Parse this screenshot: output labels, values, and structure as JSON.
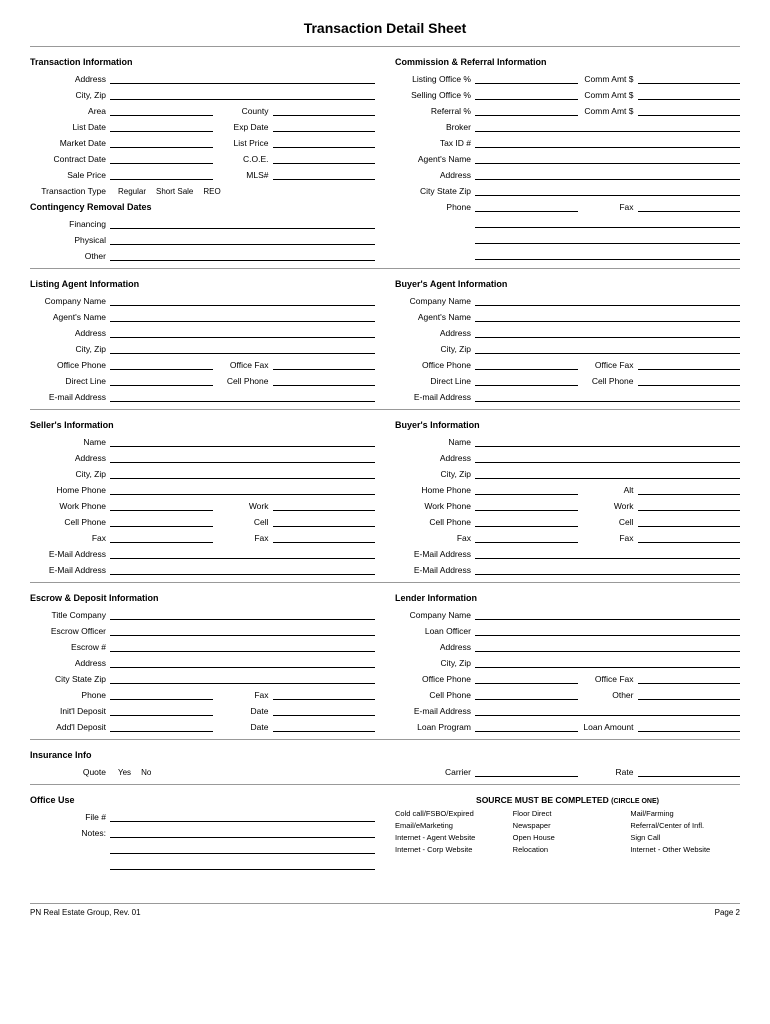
{
  "title": "Transaction Detail Sheet",
  "sections": {
    "transaction": {
      "head": "Transaction Information",
      "address": "Address",
      "cityzip": "City, Zip",
      "area": "Area",
      "county": "County",
      "listdate": "List Date",
      "expdate": "Exp Date",
      "marketdate": "Market Date",
      "listprice": "List Price",
      "contractdate": "Contract Date",
      "coe": "C.O.E.",
      "saleprice": "Sale Price",
      "mls": "MLS#",
      "transtype": "Transaction Type",
      "regular": "Regular",
      "shortsale": "Short Sale",
      "reo": "REO"
    },
    "contingency": {
      "head": "Contingency Removal Dates",
      "financing": "Financing",
      "physical": "Physical",
      "other": "Other"
    },
    "commission": {
      "head": "Commission & Referral Information",
      "listingpct": "Listing Office %",
      "commamt": "Comm Amt $",
      "sellingpct": "Selling Office %",
      "referralpct": "Referral %",
      "broker": "Broker",
      "taxid": "Tax ID #",
      "agentname": "Agent's Name",
      "address": "Address",
      "citystatezip": "City State Zip",
      "phone": "Phone",
      "fax": "Fax"
    },
    "listing_agent": {
      "head": "Listing Agent Information",
      "company": "Company Name",
      "agent": "Agent's Name",
      "address": "Address",
      "cityzip": "City, Zip",
      "officephone": "Office Phone",
      "officefax": "Office Fax",
      "directline": "Direct Line",
      "cellphone": "Cell Phone",
      "email": "E-mail Address"
    },
    "buyer_agent": {
      "head": "Buyer's Agent Information"
    },
    "seller": {
      "head": "Seller's Information",
      "name": "Name",
      "address": "Address",
      "cityzip": "City, Zip",
      "homephone": "Home Phone",
      "workphone": "Work Phone",
      "work": "Work",
      "cellphone": "Cell Phone",
      "cell": "Cell",
      "fax": "Fax",
      "alt": "Alt",
      "emailaddress": "E-Mail Address"
    },
    "buyer": {
      "head": "Buyer's Information"
    },
    "escrow": {
      "head": "Escrow & Deposit Information",
      "titlecompany": "Title Company",
      "escrowofficer": "Escrow Officer",
      "escrownum": "Escrow #",
      "address": "Address",
      "citystatezip": "City State Zip",
      "phone": "Phone",
      "fax": "Fax",
      "initdeposit": "Init'l Deposit",
      "date": "Date",
      "addldeposit": "Add'l Deposit"
    },
    "lender": {
      "head": "Lender Information",
      "company": "Company Name",
      "loanofficer": "Loan Officer",
      "address": "Address",
      "cityzip": "City, Zip",
      "officephone": "Office Phone",
      "officefax": "Office Fax",
      "cellphone": "Cell Phone",
      "other": "Other",
      "email": "E-mail Address",
      "loanprogram": "Loan Program",
      "loanamount": "Loan Amount"
    },
    "insurance": {
      "head": "Insurance Info",
      "quote": "Quote",
      "yes": "Yes",
      "no": "No",
      "carrier": "Carrier",
      "rate": "Rate"
    },
    "office": {
      "head": "Office Use",
      "filenum": "File #",
      "notes": "Notes:"
    },
    "source": {
      "head": "SOURCE MUST BE COMPLETED",
      "circle": "(CIRCLE ONE)",
      "items": [
        "Cold call/FSBO/Expired",
        "Floor Direct",
        "Mail/Farming",
        "Email/eMarketing",
        "Newspaper",
        "Referral/Center of Infl.",
        "Internet - Agent Website",
        "Open House",
        "Sign Call",
        "Internet - Corp Website",
        "Relocation",
        "Internet - Other Website"
      ]
    }
  },
  "footer": {
    "left": "PN Real Estate Group, Rev. 01",
    "right": "Page 2"
  }
}
